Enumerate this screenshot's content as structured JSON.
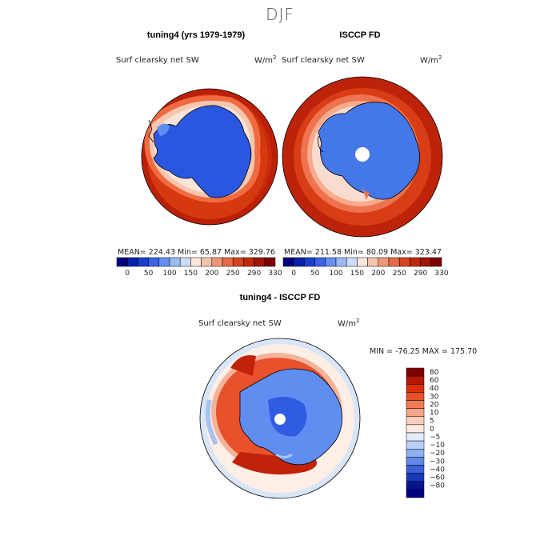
{
  "figure": {
    "title": "DJF"
  },
  "panels": [
    {
      "title": "tuning4 (yrs 1979-1979)",
      "variable": "Surf clearsky net SW",
      "units": "W/m",
      "units_sup": "2",
      "stats": "MEAN= 224.43   Min=  65.87   Max= 329.76"
    },
    {
      "title": "ISCCP FD",
      "variable": "Surf clearsky net SW",
      "units": "W/m",
      "units_sup": "2",
      "stats": "MEAN= 211.58   Min=  80.09   Max= 323.47"
    },
    {
      "title": "tuning4 - ISCCP FD",
      "variable": "Surf clearsky net SW",
      "units": "W/m",
      "units_sup": "2",
      "stats": "MIN = -76.25  MAX = 175.70"
    }
  ],
  "colorbar_abs": {
    "ticks": [
      "0",
      "50",
      "100",
      "150",
      "200",
      "250",
      "290",
      "330"
    ],
    "colors": [
      "#00007f",
      "#0a1fa8",
      "#1a3fd0",
      "#3b62e8",
      "#6690f0",
      "#9bbaf6",
      "#cddcf8",
      "#fbe6dc",
      "#f6c3ad",
      "#ef9877",
      "#e66a48",
      "#d8431f",
      "#c02a0c",
      "#a01505",
      "#7f0000"
    ]
  },
  "colorbar_diff": {
    "ticks": [
      "80",
      "60",
      "40",
      "30",
      "20",
      "10",
      "5",
      "0",
      "−5",
      "−10",
      "−20",
      "−30",
      "−40",
      "−60",
      "−80"
    ],
    "colors": [
      "#7f0000",
      "#b81604",
      "#d8300a",
      "#e8502a",
      "#f07a55",
      "#f6a585",
      "#fad0bc",
      "#fcebe2",
      "#e3ecfa",
      "#bcd0f6",
      "#8fb0f0",
      "#6288e8",
      "#3a60d8",
      "#1a38b8",
      "#06148f",
      "#00007f"
    ]
  }
}
